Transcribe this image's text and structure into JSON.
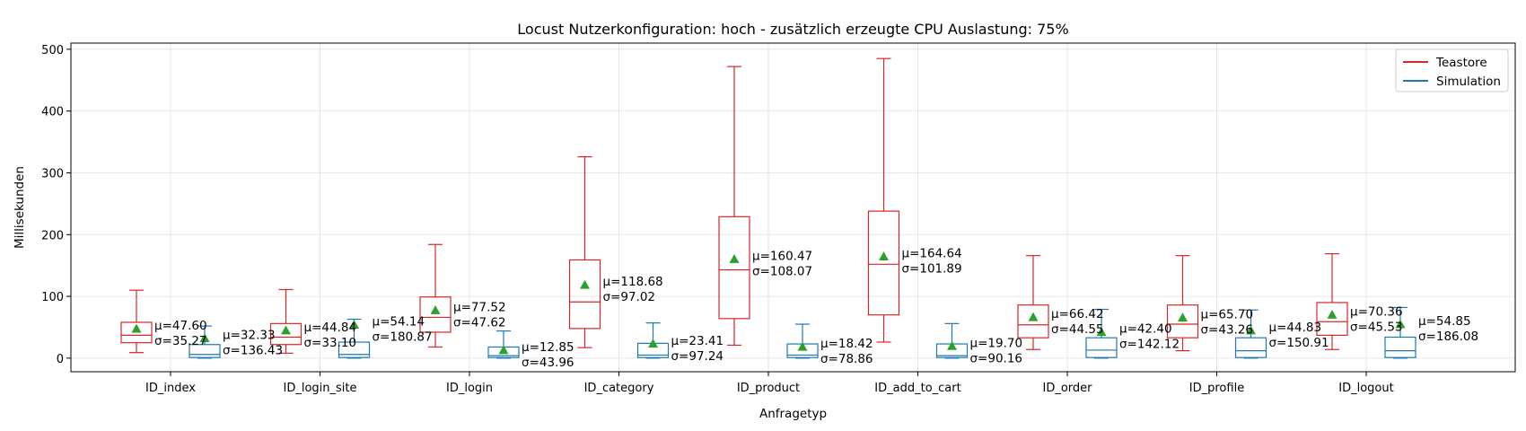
{
  "chart_data": {
    "type": "box",
    "title": "Locust Nutzerkonfiguration: hoch - zusätzlich erzeugte CPU Auslastung: 75%",
    "xlabel": "Anfragetyp",
    "ylabel": "Millisekunden",
    "ylim": [
      -22,
      510
    ],
    "yticks": [
      0,
      100,
      200,
      300,
      400,
      500
    ],
    "grid": true,
    "legend_position": "top-right",
    "categories": [
      "ID_index",
      "ID_login_site",
      "ID_login",
      "ID_category",
      "ID_product",
      "ID_add_to_cart",
      "ID_order",
      "ID_profile",
      "ID_logout"
    ],
    "series": [
      {
        "name": "Teastore",
        "color": "#d62728",
        "boxes": [
          {
            "whislo": 9,
            "q1": 25,
            "med": 37,
            "q3": 58,
            "whishi": 110,
            "mean": 47.6,
            "mean_label": "μ=47.60",
            "std_label": "σ=35.27"
          },
          {
            "whislo": 8,
            "q1": 22,
            "med": 34,
            "q3": 56,
            "whishi": 111,
            "mean": 44.84,
            "mean_label": "μ=44.84",
            "std_label": "σ=33.10"
          },
          {
            "whislo": 18,
            "q1": 42,
            "med": 66,
            "q3": 99,
            "whishi": 184,
            "mean": 77.52,
            "mean_label": "μ=77.52",
            "std_label": "σ=47.62"
          },
          {
            "whislo": 17,
            "q1": 48,
            "med": 91,
            "q3": 159,
            "whishi": 326,
            "mean": 118.68,
            "mean_label": "μ=118.68",
            "std_label": "σ=97.02"
          },
          {
            "whislo": 21,
            "q1": 64,
            "med": 143,
            "q3": 229,
            "whishi": 472,
            "mean": 160.47,
            "mean_label": "μ=160.47",
            "std_label": "σ=108.07"
          },
          {
            "whislo": 26,
            "q1": 70,
            "med": 152,
            "q3": 238,
            "whishi": 485,
            "mean": 164.64,
            "mean_label": "μ=164.64",
            "std_label": "σ=101.89"
          },
          {
            "whislo": 14,
            "q1": 33,
            "med": 54,
            "q3": 86,
            "whishi": 166,
            "mean": 66.42,
            "mean_label": "μ=66.42",
            "std_label": "σ=44.55"
          },
          {
            "whislo": 12,
            "q1": 33,
            "med": 55,
            "q3": 86,
            "whishi": 166,
            "mean": 65.7,
            "mean_label": "μ=65.70",
            "std_label": "σ=43.26"
          },
          {
            "whislo": 14,
            "q1": 37,
            "med": 59,
            "q3": 90,
            "whishi": 169,
            "mean": 70.36,
            "mean_label": "μ=70.36",
            "std_label": "σ=45.53"
          }
        ]
      },
      {
        "name": "Simulation",
        "color": "#1f77b4",
        "boxes": [
          {
            "whislo": 0,
            "q1": 1,
            "med": 6,
            "q3": 22,
            "whishi": 52,
            "mean": 32.33,
            "mean_label": "μ=32.33",
            "std_label": "σ=136.43"
          },
          {
            "whislo": 0,
            "q1": 1,
            "med": 6,
            "q3": 26,
            "whishi": 63,
            "mean": 54.14,
            "mean_label": "μ=54.14",
            "std_label": "σ=180.87"
          },
          {
            "whislo": 0,
            "q1": 1,
            "med": 4,
            "q3": 18,
            "whishi": 44,
            "mean": 12.85,
            "mean_label": "μ=12.85",
            "std_label": "σ=43.96"
          },
          {
            "whislo": 0,
            "q1": 1,
            "med": 5,
            "q3": 24,
            "whishi": 57,
            "mean": 23.41,
            "mean_label": "μ=23.41",
            "std_label": "σ=97.24"
          },
          {
            "whislo": 0,
            "q1": 1,
            "med": 5,
            "q3": 23,
            "whishi": 55,
            "mean": 18.42,
            "mean_label": "μ=18.42",
            "std_label": "σ=78.86"
          },
          {
            "whislo": 0,
            "q1": 1,
            "med": 4,
            "q3": 23,
            "whishi": 56,
            "mean": 19.7,
            "mean_label": "μ=19.70",
            "std_label": "σ=90.16"
          },
          {
            "whislo": 0,
            "q1": 1,
            "med": 13,
            "q3": 33,
            "whishi": 79,
            "mean": 42.4,
            "mean_label": "μ=42.40",
            "std_label": "σ=142.12"
          },
          {
            "whislo": 0,
            "q1": 1,
            "med": 12,
            "q3": 33,
            "whishi": 78,
            "mean": 44.83,
            "mean_label": "μ=44.83",
            "std_label": "σ=150.91"
          },
          {
            "whislo": 0,
            "q1": 1,
            "med": 12,
            "q3": 34,
            "whishi": 82,
            "mean": 54.85,
            "mean_label": "μ=54.85",
            "std_label": "σ=186.08"
          }
        ]
      }
    ],
    "mean_marker_color": "#2ca02c"
  }
}
